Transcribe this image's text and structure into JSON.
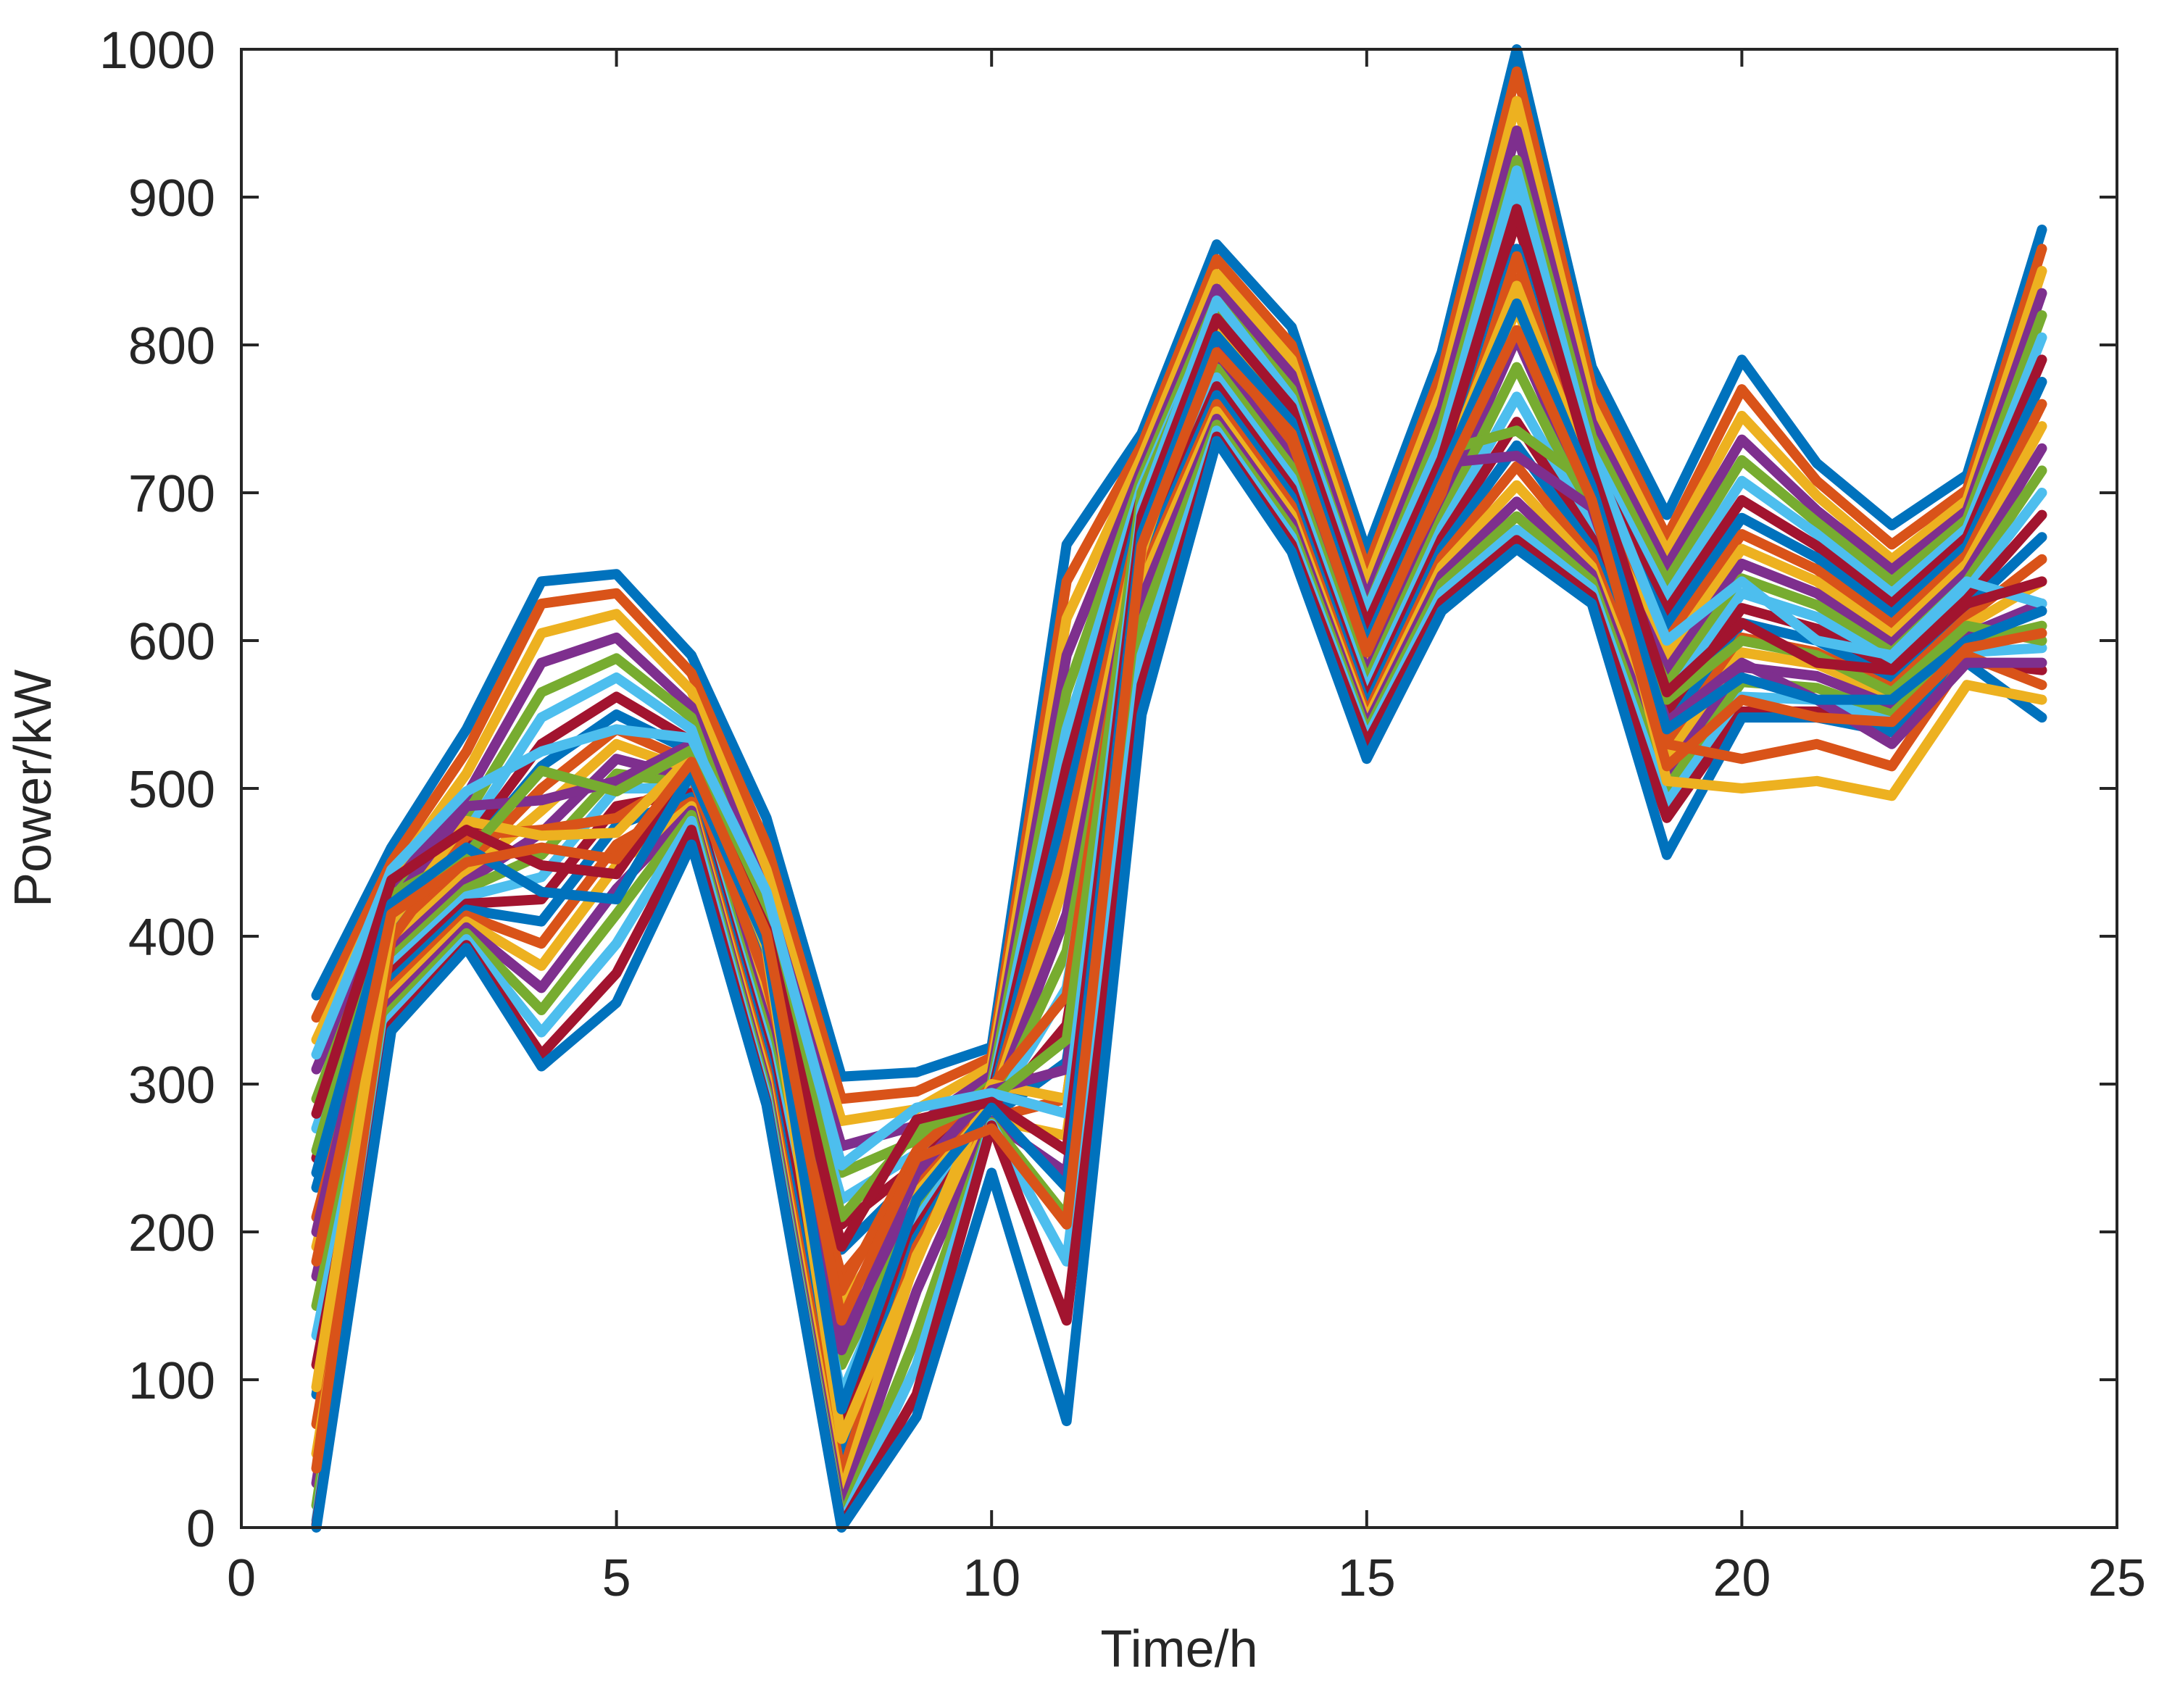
{
  "chart_data": {
    "type": "line",
    "title": "",
    "xlabel": "Time/h",
    "ylabel": "Power/kW",
    "xlim": [
      0,
      25
    ],
    "ylim": [
      0,
      1000
    ],
    "xticks": [
      0,
      5,
      10,
      15,
      20,
      25
    ],
    "yticks": [
      0,
      100,
      200,
      300,
      400,
      500,
      600,
      700,
      800,
      900,
      1000
    ],
    "grid": false,
    "legend": "none",
    "x": [
      1,
      2,
      3,
      4,
      5,
      6,
      7,
      8,
      9,
      10,
      11,
      12,
      13,
      14,
      15,
      16,
      17,
      18,
      19,
      20,
      21,
      22,
      23,
      24
    ],
    "colors": [
      "#0072BD",
      "#D95319",
      "#EDB120",
      "#7E2F8E",
      "#77AC30",
      "#4DBEEE",
      "#A2142F"
    ],
    "series": [
      {
        "values": [
          360,
          460,
          540,
          640,
          645,
          590,
          480,
          305,
          308,
          325,
          665,
          740,
          868,
          812,
          660,
          795,
          1000,
          785,
          685,
          790,
          720,
          678,
          712,
          878
        ]
      },
      {
        "values": [
          345,
          450,
          525,
          625,
          632,
          578,
          462,
          290,
          295,
          318,
          640,
          732,
          858,
          800,
          648,
          782,
          985,
          772,
          670,
          770,
          708,
          665,
          702,
          865
        ]
      },
      {
        "values": [
          330,
          440,
          510,
          605,
          618,
          566,
          445,
          275,
          283,
          312,
          615,
          724,
          848,
          790,
          638,
          770,
          965,
          760,
          660,
          752,
          698,
          655,
          695,
          850
        ]
      },
      {
        "values": [
          310,
          432,
          495,
          585,
          602,
          555,
          428,
          258,
          272,
          306,
          590,
          716,
          838,
          780,
          628,
          758,
          945,
          748,
          650,
          736,
          688,
          648,
          688,
          835
        ]
      },
      {
        "values": [
          290,
          425,
          482,
          565,
          588,
          548,
          412,
          240,
          262,
          300,
          565,
          710,
          830,
          770,
          620,
          746,
          925,
          738,
          640,
          722,
          680,
          640,
          682,
          820
        ]
      },
      {
        "values": [
          270,
          418,
          470,
          548,
          575,
          540,
          398,
          222,
          253,
          295,
          540,
          704,
          822,
          760,
          612,
          735,
          905,
          728,
          630,
          708,
          672,
          632,
          676,
          805
        ]
      },
      {
        "values": [
          250,
          412,
          462,
          530,
          562,
          532,
          385,
          205,
          245,
          292,
          515,
          698,
          815,
          752,
          604,
          725,
          885,
          720,
          620,
          695,
          664,
          625,
          670,
          790
        ]
      },
      {
        "values": [
          230,
          406,
          455,
          515,
          550,
          525,
          372,
          188,
          238,
          289,
          490,
          692,
          808,
          745,
          597,
          715,
          865,
          712,
          610,
          683,
          656,
          618,
          664,
          775
        ]
      },
      {
        "values": [
          210,
          400,
          448,
          500,
          540,
          518,
          360,
          170,
          232,
          287,
          465,
          686,
          802,
          738,
          590,
          706,
          845,
          704,
          600,
          672,
          648,
          611,
          658,
          760
        ]
      },
      {
        "values": [
          190,
          395,
          442,
          485,
          530,
          512,
          350,
          150,
          226,
          285,
          440,
          680,
          796,
          731,
          584,
          698,
          825,
          697,
          590,
          662,
          640,
          604,
          652,
          745
        ]
      },
      {
        "values": [
          170,
          390,
          437,
          470,
          520,
          507,
          342,
          130,
          220,
          283,
          415,
          674,
          790,
          724,
          578,
          690,
          805,
          690,
          580,
          652,
          632,
          598,
          646,
          730
        ]
      },
      {
        "values": [
          150,
          385,
          432,
          455,
          510,
          503,
          335,
          110,
          214,
          281,
          390,
          668,
          784,
          717,
          572,
          683,
          785,
          683,
          570,
          642,
          624,
          592,
          640,
          715
        ]
      },
      {
        "values": [
          130,
          380,
          427,
          440,
          500,
          500,
          328,
          90,
          208,
          280,
          365,
          662,
          778,
          710,
          566,
          676,
          765,
          676,
          560,
          632,
          616,
          586,
          634,
          700
        ]
      },
      {
        "values": [
          110,
          375,
          422,
          425,
          488,
          497,
          322,
          70,
          202,
          279,
          340,
          656,
          772,
          703,
          560,
          669,
          748,
          669,
          550,
          622,
          608,
          580,
          628,
          685
        ]
      },
      {
        "values": [
          90,
          370,
          418,
          410,
          475,
          494,
          316,
          50,
          196,
          278,
          315,
          650,
          766,
          697,
          555,
          662,
          732,
          662,
          540,
          612,
          600,
          574,
          622,
          670
        ]
      },
      {
        "values": [
          70,
          365,
          414,
          395,
          462,
          491,
          310,
          35,
          190,
          277,
          290,
          644,
          760,
          691,
          550,
          656,
          718,
          656,
          530,
          602,
          592,
          568,
          616,
          655
        ]
      },
      {
        "values": [
          50,
          360,
          410,
          380,
          448,
          488,
          305,
          22,
          184,
          276,
          265,
          638,
          755,
          685,
          546,
          650,
          705,
          650,
          520,
          592,
          584,
          562,
          610,
          640
        ]
      },
      {
        "values": [
          30,
          355,
          406,
          365,
          432,
          485,
          300,
          12,
          160,
          275,
          240,
          628,
          750,
          680,
          542,
          644,
          694,
          645,
          510,
          582,
          576,
          556,
          604,
          625
        ]
      },
      {
        "values": [
          15,
          350,
          402,
          350,
          415,
          482,
          296,
          5,
          130,
          274,
          210,
          612,
          746,
          675,
          538,
          638,
          684,
          640,
          500,
          572,
          568,
          550,
          598,
          610
        ]
      },
      {
        "values": [
          5,
          345,
          398,
          335,
          395,
          478,
          292,
          2,
          110,
          273,
          180,
          590,
          742,
          670,
          534,
          632,
          675,
          635,
          490,
          562,
          560,
          545,
          592,
          595
        ]
      },
      {
        "values": [
          2,
          340,
          394,
          320,
          375,
          472,
          288,
          1,
          90,
          272,
          140,
          570,
          738,
          665,
          530,
          626,
          668,
          630,
          480,
          552,
          552,
          540,
          586,
          580
        ]
      },
      {
        "values": [
          0,
          336,
          392,
          312,
          355,
          462,
          286,
          0,
          75,
          240,
          72,
          550,
          735,
          660,
          520,
          620,
          662,
          625,
          455,
          548,
          548,
          538,
          585,
          548
        ]
      },
      {
        "values": [
          40,
          398,
          468,
          472,
          480,
          510,
          370,
          160,
          255,
          298,
          360,
          690,
          800,
          735,
          600,
          700,
          860,
          700,
          530,
          520,
          530,
          515,
          590,
          570
        ]
      },
      {
        "values": [
          95,
          410,
          478,
          468,
          470,
          522,
          392,
          60,
          180,
          300,
          290,
          660,
          812,
          742,
          608,
          712,
          840,
          710,
          505,
          500,
          505,
          495,
          570,
          560
        ]
      },
      {
        "values": [
          200,
          420,
          488,
          492,
          505,
          530,
          410,
          120,
          240,
          296,
          310,
          675,
          805,
          748,
          612,
          720,
          725,
          690,
          545,
          585,
          560,
          530,
          585,
          585
        ]
      },
      {
        "values": [
          255,
          428,
          455,
          512,
          498,
          526,
          418,
          210,
          268,
          290,
          330,
          700,
          820,
          756,
          615,
          728,
          742,
          705,
          560,
          600,
          590,
          565,
          610,
          600
        ]
      },
      {
        "values": [
          320,
          445,
          498,
          525,
          540,
          534,
          430,
          245,
          284,
          294,
          280,
          690,
          830,
          764,
          620,
          735,
          918,
          726,
          600,
          640,
          600,
          590,
          640,
          625
        ]
      },
      {
        "values": [
          280,
          438,
          472,
          448,
          442,
          515,
          405,
          190,
          276,
          288,
          255,
          684,
          818,
          758,
          610,
          723,
          892,
          716,
          565,
          612,
          585,
          580,
          625,
          640
        ]
      },
      {
        "values": [
          240,
          422,
          460,
          430,
          425,
          510,
          395,
          80,
          222,
          284,
          230,
          672,
          806,
          748,
          598,
          712,
          828,
          704,
          540,
          575,
          560,
          560,
          600,
          620
        ]
      },
      {
        "values": [
          180,
          415,
          450,
          460,
          452,
          518,
          402,
          140,
          250,
          270,
          205,
          664,
          795,
          740,
          592,
          705,
          810,
          695,
          515,
          560,
          548,
          545,
          595,
          605
        ]
      }
    ]
  }
}
